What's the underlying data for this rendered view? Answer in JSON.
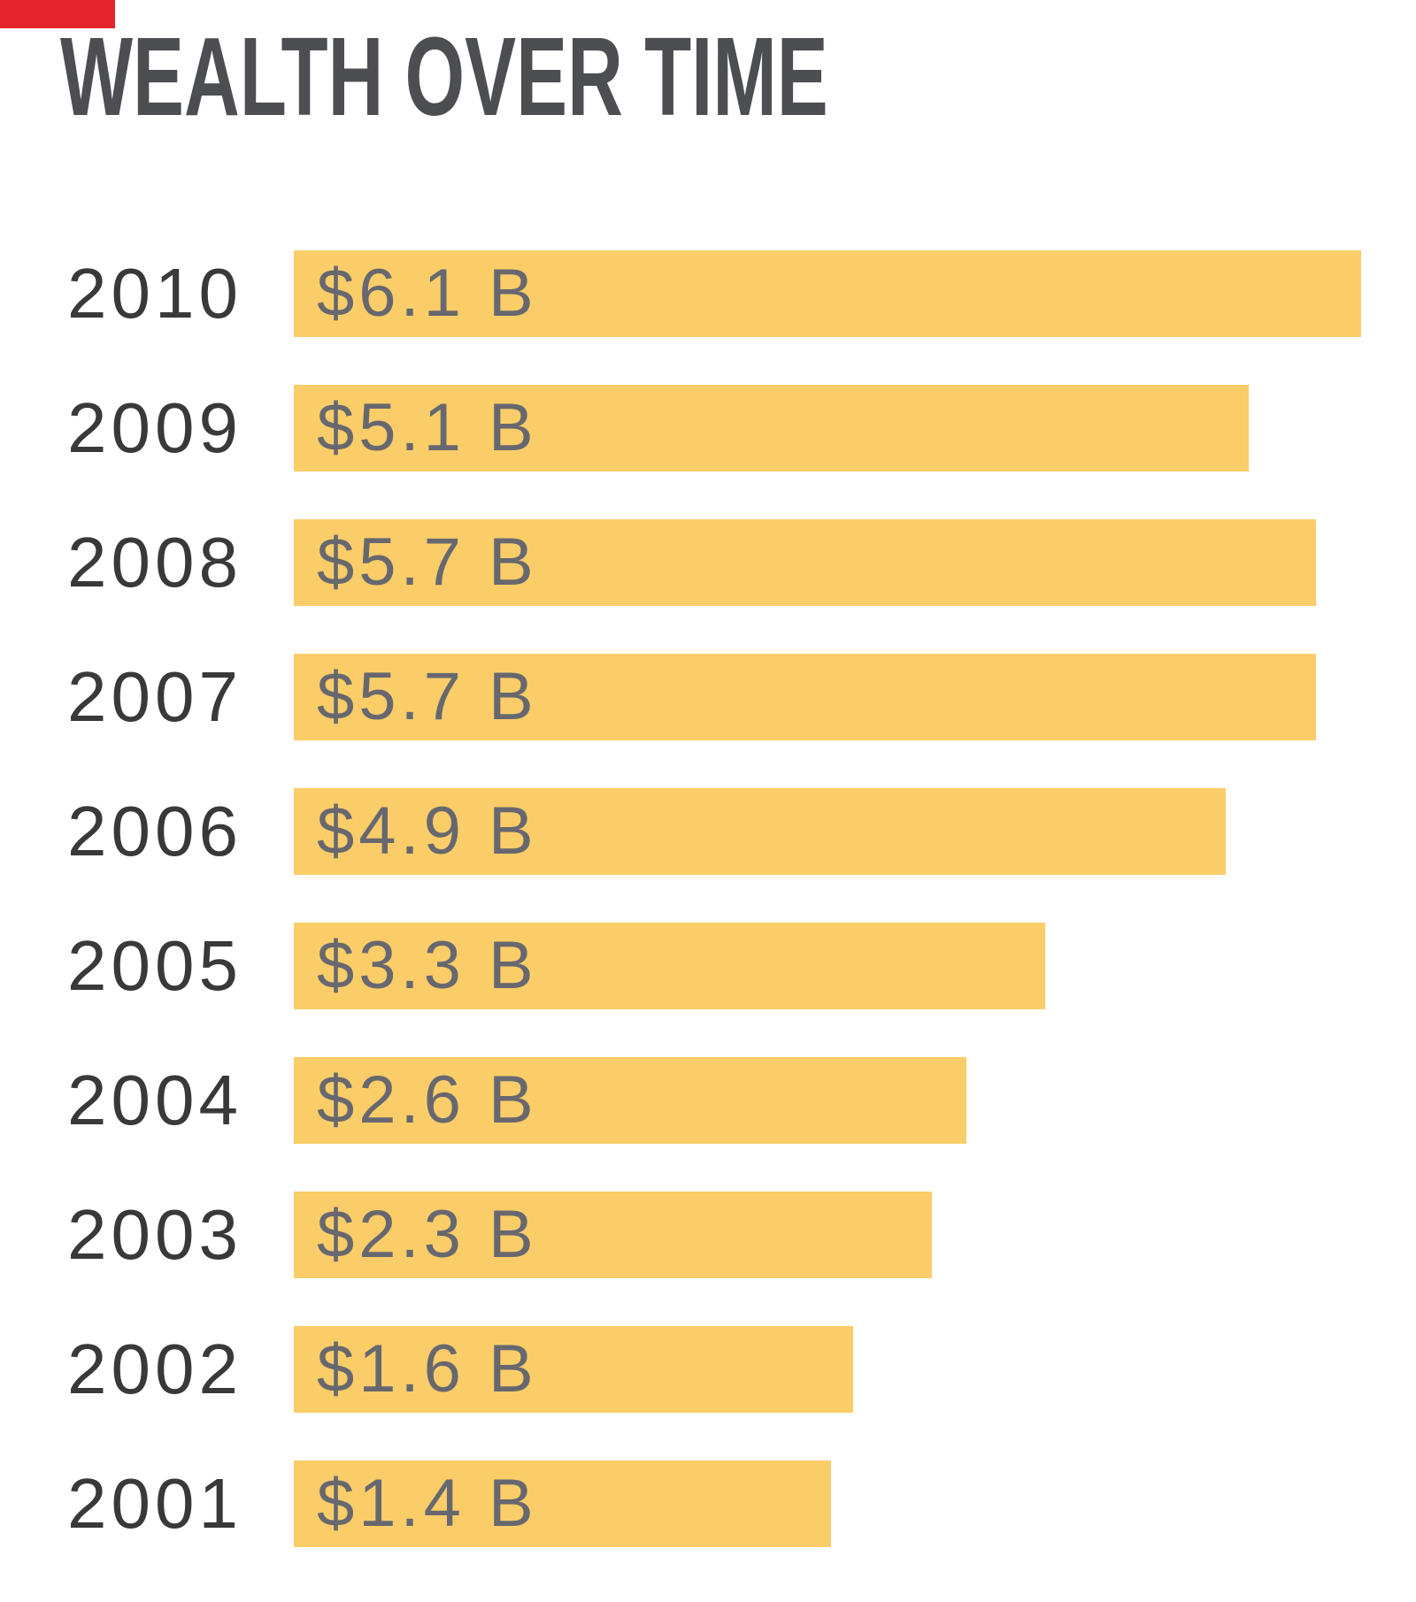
{
  "page": {
    "background": "#FFFFFF"
  },
  "brand": {
    "accent_color": "#E5252C"
  },
  "chart_data": {
    "type": "bar",
    "orientation": "horizontal",
    "title": "WEALTH OVER TIME",
    "categories": [
      "2010",
      "2009",
      "2008",
      "2007",
      "2006",
      "2005",
      "2004",
      "2003",
      "2002",
      "2001"
    ],
    "values": [
      6.1,
      5.1,
      5.7,
      5.7,
      4.9,
      3.3,
      2.6,
      2.3,
      1.6,
      1.4
    ],
    "value_labels": [
      "$6.1 B",
      "$5.1 B",
      "$5.7 B",
      "$5.7 B",
      "$4.9 B",
      "$3.3 B",
      "$2.6 B",
      "$2.3 B",
      "$1.6 B",
      "$1.4 B"
    ],
    "unit_suffix": "B",
    "xlabel": "",
    "ylabel": "",
    "grid": false,
    "legend": false,
    "value_label_position": "inside-start",
    "bar_min_width_frac": 0.355,
    "colors": {
      "bar": "#FACD69",
      "title": "#4D4E52",
      "year": "#39393B",
      "value": "#67686F"
    }
  }
}
